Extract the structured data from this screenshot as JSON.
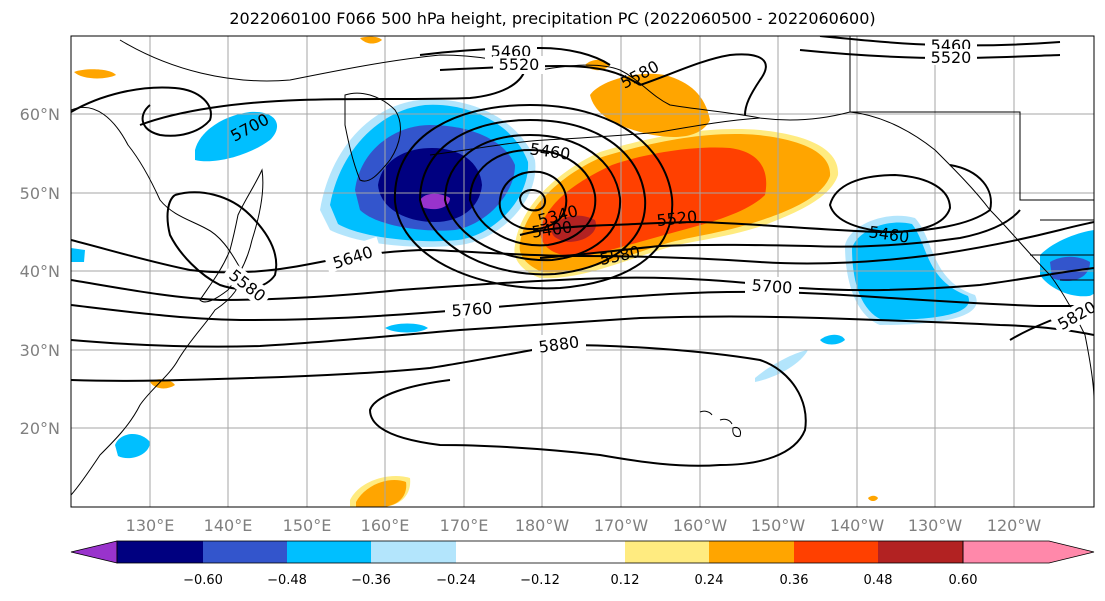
{
  "title": "2022060100 F066 500 hPa height, precipitation PC (2022060500 - 2022060600)",
  "map": {
    "lat_labels": [
      "60°N",
      "50°N",
      "40°N",
      "30°N",
      "20°N"
    ],
    "lon_labels": [
      "130°E",
      "140°E",
      "150°E",
      "160°E",
      "170°E",
      "180°W",
      "170°W",
      "160°W",
      "150°W",
      "140°W",
      "130°W",
      "120°W"
    ]
  },
  "contour_labels": [
    {
      "text": "5460"
    },
    {
      "text": "5520"
    },
    {
      "text": "5580"
    },
    {
      "text": "5700"
    },
    {
      "text": "5460"
    },
    {
      "text": "5340"
    },
    {
      "text": "5400"
    },
    {
      "text": "5520"
    },
    {
      "text": "5580"
    },
    {
      "text": "5640"
    },
    {
      "text": "5580"
    },
    {
      "text": "5460"
    },
    {
      "text": "5700"
    },
    {
      "text": "5760"
    },
    {
      "text": "5880"
    },
    {
      "text": "5820"
    },
    {
      "text": "5460"
    },
    {
      "text": "5520"
    }
  ],
  "colorbar": {
    "colors": [
      "#9933cc",
      "#000080",
      "#3355cc",
      "#00bfff",
      "#b3e5fc",
      "#ffffff",
      "#ffeb80",
      "#ffa500",
      "#ff4000",
      "#b22222",
      "#ff88aa"
    ],
    "labels": [
      "−0.60",
      "−0.48",
      "−0.36",
      "−0.24",
      "−0.12",
      "0.12",
      "0.24",
      "0.36",
      "0.48",
      "0.60"
    ]
  }
}
